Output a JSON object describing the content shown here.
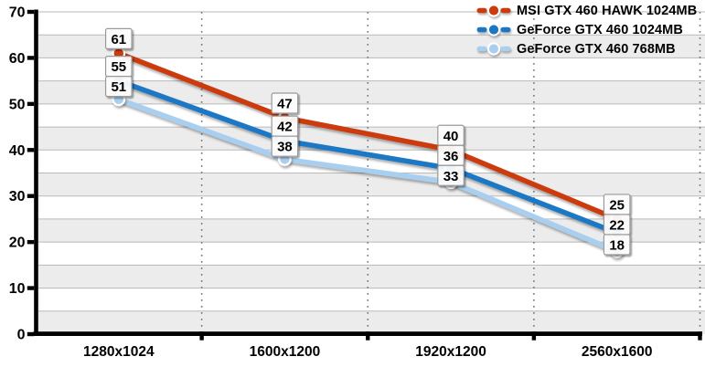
{
  "chart": {
    "background": "#ffffff",
    "band_color": "#ececec",
    "grid_color": "#b9b9b9",
    "axis_color": "#000000",
    "boundary_line_color": "#7a7a7a",
    "label_box_fill": "rgba(255,255,255,0.92)",
    "label_box_border": "#999999",
    "text_color": "#000000"
  },
  "chart_data": {
    "type": "line",
    "title": "",
    "xlabel": "",
    "ylabel": "",
    "categories": [
      "1280x1024",
      "1600x1200",
      "1920x1200",
      "2560x1600"
    ],
    "series": [
      {
        "name": "MSI GTX 460 HAWK 1024MB",
        "color": "#cc3a0e",
        "values": [
          61,
          47,
          40,
          25
        ]
      },
      {
        "name": "GeForce GTX 460 1024MB",
        "color": "#1b77c4",
        "values": [
          55,
          42,
          36,
          22
        ]
      },
      {
        "name": "GeForce GTX 460 768MB",
        "color": "#a8cff0",
        "values": [
          51,
          38,
          33,
          18
        ]
      }
    ],
    "ylim": [
      0,
      70
    ],
    "y_major_step": 10,
    "y_minor_step": 5,
    "y_tick_labels": [
      "0",
      "10",
      "20",
      "30",
      "40",
      "50",
      "60",
      "70"
    ],
    "grid": true,
    "alternating_bands": true,
    "category_boundary_lines": "dotted",
    "marker": "circle",
    "data_labels": true,
    "legend_position": "top-right"
  }
}
